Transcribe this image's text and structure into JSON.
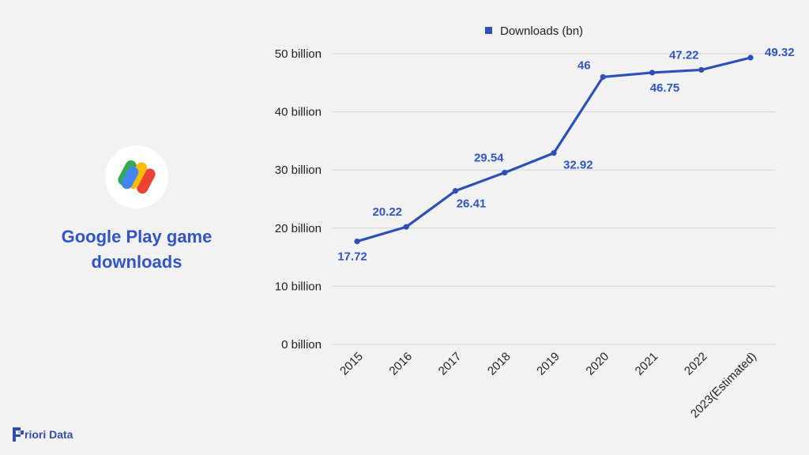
{
  "title_lines": [
    "Google Play game",
    "downloads"
  ],
  "brand": {
    "text": "riori Data",
    "icon": "priori-data-logo-icon"
  },
  "logo": {
    "icon": "google-play-games-icon"
  },
  "chart_data": {
    "type": "line",
    "categories": [
      "2015",
      "2016",
      "2017",
      "2018",
      "2019",
      "2020",
      "2021",
      "2022",
      "2023(Estimated)"
    ],
    "series": [
      {
        "name": "Downloads (bn)",
        "values": [
          17.72,
          20.22,
          26.41,
          29.54,
          32.92,
          46,
          46.75,
          47.22,
          49.32
        ],
        "labels": [
          "17.72",
          "20.22",
          "26.41",
          "29.54",
          "32.92",
          "46",
          "46.75",
          "47.22",
          "49.32"
        ],
        "color": "#2d4fb8"
      }
    ],
    "ylim": [
      0,
      50
    ],
    "yticks": [
      0,
      10,
      20,
      30,
      40,
      50
    ],
    "ytick_labels": [
      "0 billion",
      "10 billion",
      "20 billion",
      "30 billion",
      "40 billion",
      "50 billion"
    ],
    "grid": true,
    "legend_position": "top-center",
    "label_color": "#2f55c7",
    "grid_color": "#d4d4d4"
  }
}
